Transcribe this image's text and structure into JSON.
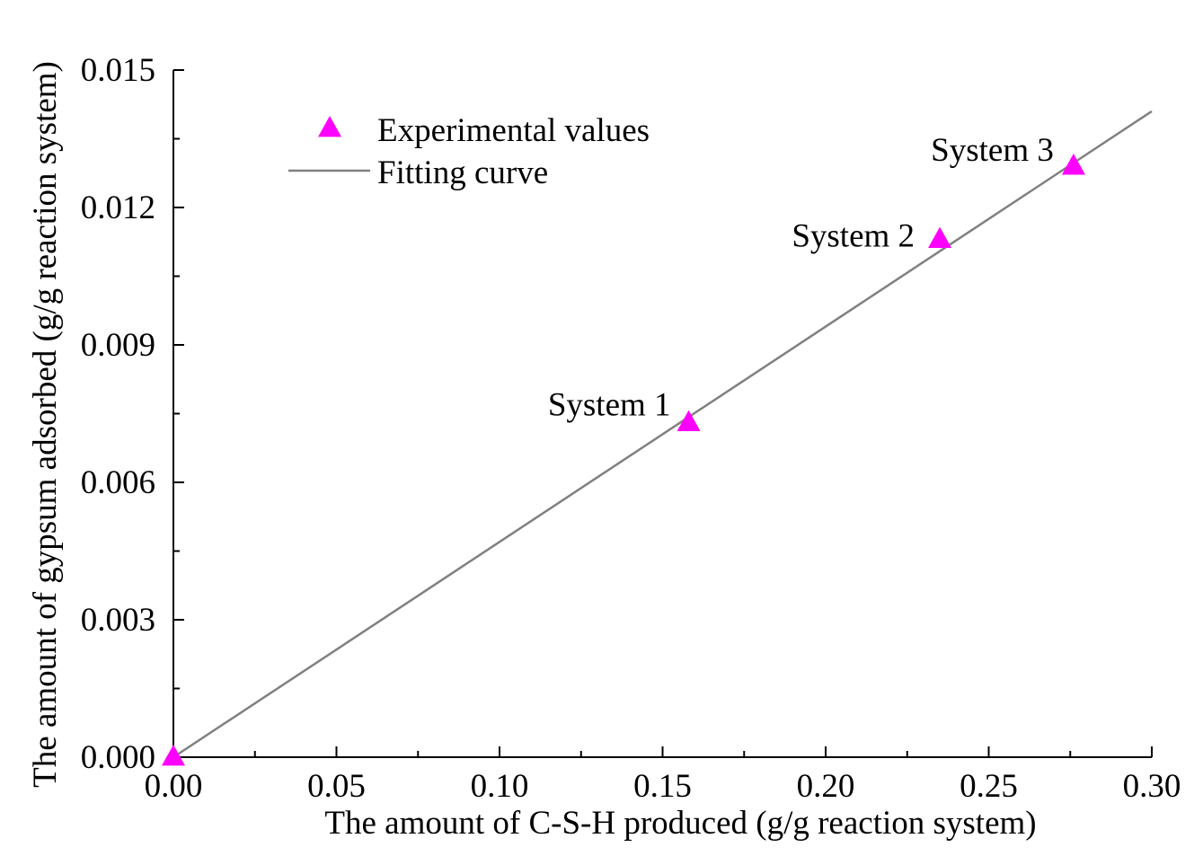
{
  "chart_data": {
    "type": "scatter",
    "title": "",
    "xlabel": "The amount of C-S-H produced (g/g reaction system)",
    "ylabel": "The amount of  gypsum adsorbed (g/g reaction system)",
    "xlim": [
      0,
      0.3
    ],
    "ylim": [
      0,
      0.015
    ],
    "x_ticks": [
      0,
      0.05,
      0.1,
      0.15,
      0.2,
      0.25,
      0.3
    ],
    "x_tick_labels": [
      "0.00",
      "0.05",
      "0.10",
      "0.15",
      "0.20",
      "0.25",
      "0.30"
    ],
    "y_ticks": [
      0,
      0.003,
      0.006,
      0.009,
      0.012,
      0.015
    ],
    "y_tick_labels": [
      "0.000",
      "0.003",
      "0.006",
      "0.009",
      "0.012",
      "0.015"
    ],
    "grid": false,
    "legend_position": "top-left",
    "series": [
      {
        "name": "Experimental values",
        "kind": "scatter",
        "marker": "triangle",
        "color": "#FF00FF",
        "x": [
          0,
          0.158,
          0.235,
          0.276
        ],
        "y": [
          0,
          0.0073,
          0.0113,
          0.0129
        ],
        "labels": [
          "",
          "System 1",
          "System 2",
          "System 3"
        ]
      },
      {
        "name": "Fitting curve",
        "kind": "line",
        "color": "#808080",
        "x": [
          0,
          0.3
        ],
        "y": [
          0,
          0.0141
        ]
      }
    ]
  }
}
